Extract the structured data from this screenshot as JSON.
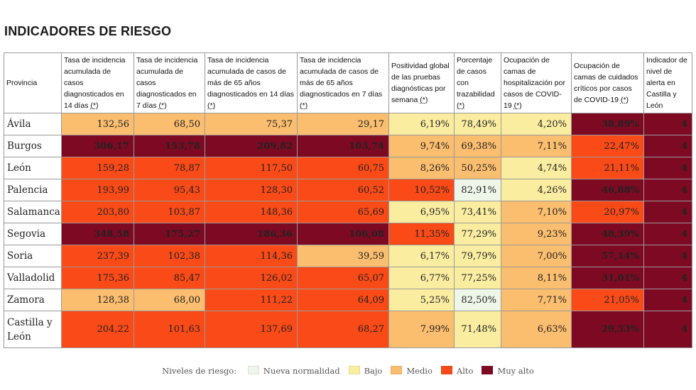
{
  "title": "INDICADORES DE RIESGO",
  "colors": {
    "nueva_normalidad": "#edf6e8",
    "bajo": "#fbeda0",
    "medio": "#fbbd6e",
    "alto": "#fa4a17",
    "muy_alto": "#7d0a22"
  },
  "columns": [
    {
      "label": "Provincia",
      "footnote": ""
    },
    {
      "label": "Tasa de incidencia acumulada de casos diagnosticados en 14 días",
      "footnote": "(*)"
    },
    {
      "label": "Tasa de incidencia acumulada de casos diagnosticados en 7 días",
      "footnote": "(*)"
    },
    {
      "label": "Tasa de incidencia acumulada de casos de más de 65 años diagnosticados en 14 días",
      "footnote": "(*)"
    },
    {
      "label": "Tasa de incidencia acumulada de casos de más de 65 años diagnosticados en 7 días",
      "footnote": "(*)"
    },
    {
      "label": "Positividad global de las pruebas diagnósticas por semana",
      "footnote": "(*)"
    },
    {
      "label": "Porcentaje de casos con trazabilidad",
      "footnote": "(*)"
    },
    {
      "label": "Ocupación de camas de hospitalización por casos de COVID-19",
      "footnote": "(*)"
    },
    {
      "label": "Ocupación de camas de cuidados críticos por casos de COVID-19",
      "footnote": "(*)"
    },
    {
      "label": "Indicador de nivel de alerta en Castilla y León",
      "footnote": ""
    }
  ],
  "rows": [
    {
      "province": "Ávila",
      "cells": [
        {
          "v": "132,56",
          "level": "medio"
        },
        {
          "v": "68,50",
          "level": "medio"
        },
        {
          "v": "75,37",
          "level": "medio"
        },
        {
          "v": "29,17",
          "level": "medio"
        },
        {
          "v": "6,19%",
          "level": "bajo"
        },
        {
          "v": "78,49%",
          "level": "bajo"
        },
        {
          "v": "4,20%",
          "level": "bajo"
        },
        {
          "v": "38,89%",
          "level": "muy_alto"
        },
        {
          "v": "4",
          "level": "muy_alto"
        }
      ]
    },
    {
      "province": "Burgos",
      "cells": [
        {
          "v": "306,17",
          "level": "muy_alto"
        },
        {
          "v": "153,78",
          "level": "muy_alto"
        },
        {
          "v": "209,82",
          "level": "muy_alto"
        },
        {
          "v": "103,74",
          "level": "muy_alto"
        },
        {
          "v": "9,74%",
          "level": "medio"
        },
        {
          "v": "69,38%",
          "level": "medio"
        },
        {
          "v": "7,11%",
          "level": "medio"
        },
        {
          "v": "22,47%",
          "level": "alto"
        },
        {
          "v": "4",
          "level": "muy_alto"
        }
      ]
    },
    {
      "province": "León",
      "cells": [
        {
          "v": "159,28",
          "level": "alto"
        },
        {
          "v": "78,87",
          "level": "alto"
        },
        {
          "v": "117,50",
          "level": "alto"
        },
        {
          "v": "60,75",
          "level": "alto"
        },
        {
          "v": "8,26%",
          "level": "medio"
        },
        {
          "v": "50,25%",
          "level": "medio"
        },
        {
          "v": "4,74%",
          "level": "bajo"
        },
        {
          "v": "21,11%",
          "level": "alto"
        },
        {
          "v": "4",
          "level": "muy_alto"
        }
      ]
    },
    {
      "province": "Palencia",
      "cells": [
        {
          "v": "193,99",
          "level": "alto"
        },
        {
          "v": "95,43",
          "level": "alto"
        },
        {
          "v": "128,30",
          "level": "alto"
        },
        {
          "v": "60,52",
          "level": "alto"
        },
        {
          "v": "10,52%",
          "level": "alto"
        },
        {
          "v": "82,91%",
          "level": "nueva_normalidad"
        },
        {
          "v": "4,26%",
          "level": "bajo"
        },
        {
          "v": "46,88%",
          "level": "muy_alto"
        },
        {
          "v": "4",
          "level": "muy_alto"
        }
      ]
    },
    {
      "province": "Salamanca",
      "cells": [
        {
          "v": "203,80",
          "level": "alto"
        },
        {
          "v": "103,87",
          "level": "alto"
        },
        {
          "v": "148,36",
          "level": "alto"
        },
        {
          "v": "65,69",
          "level": "alto"
        },
        {
          "v": "6,95%",
          "level": "bajo"
        },
        {
          "v": "73,41%",
          "level": "bajo"
        },
        {
          "v": "7,10%",
          "level": "medio"
        },
        {
          "v": "20,97%",
          "level": "alto"
        },
        {
          "v": "4",
          "level": "muy_alto"
        }
      ]
    },
    {
      "province": "Segovia",
      "cells": [
        {
          "v": "348,58",
          "level": "muy_alto"
        },
        {
          "v": "175,27",
          "level": "muy_alto"
        },
        {
          "v": "186,36",
          "level": "muy_alto"
        },
        {
          "v": "106,08",
          "level": "muy_alto"
        },
        {
          "v": "11,35%",
          "level": "alto"
        },
        {
          "v": "77,29%",
          "level": "bajo"
        },
        {
          "v": "9,23%",
          "level": "medio"
        },
        {
          "v": "48,39%",
          "level": "muy_alto"
        },
        {
          "v": "4",
          "level": "muy_alto"
        }
      ]
    },
    {
      "province": "Soria",
      "cells": [
        {
          "v": "237,39",
          "level": "alto"
        },
        {
          "v": "102,38",
          "level": "alto"
        },
        {
          "v": "114,36",
          "level": "alto"
        },
        {
          "v": "39,59",
          "level": "medio"
        },
        {
          "v": "6,17%",
          "level": "bajo"
        },
        {
          "v": "79,79%",
          "level": "bajo"
        },
        {
          "v": "7,00%",
          "level": "medio"
        },
        {
          "v": "57,14%",
          "level": "muy_alto"
        },
        {
          "v": "4",
          "level": "muy_alto"
        }
      ]
    },
    {
      "province": "Valladolid",
      "cells": [
        {
          "v": "175,36",
          "level": "alto"
        },
        {
          "v": "85,47",
          "level": "alto"
        },
        {
          "v": "126,02",
          "level": "alto"
        },
        {
          "v": "65,07",
          "level": "alto"
        },
        {
          "v": "6,77%",
          "level": "bajo"
        },
        {
          "v": "77,25%",
          "level": "bajo"
        },
        {
          "v": "8,11%",
          "level": "medio"
        },
        {
          "v": "31,01%",
          "level": "muy_alto"
        },
        {
          "v": "4",
          "level": "muy_alto"
        }
      ]
    },
    {
      "province": "Zamora",
      "cells": [
        {
          "v": "128,38",
          "level": "medio"
        },
        {
          "v": "68,00",
          "level": "medio"
        },
        {
          "v": "111,22",
          "level": "alto"
        },
        {
          "v": "64,09",
          "level": "alto"
        },
        {
          "v": "5,25%",
          "level": "bajo"
        },
        {
          "v": "82,50%",
          "level": "nueva_normalidad"
        },
        {
          "v": "7,71%",
          "level": "medio"
        },
        {
          "v": "21,05%",
          "level": "alto"
        },
        {
          "v": "4",
          "level": "muy_alto"
        }
      ]
    },
    {
      "province": "Castilla y León",
      "cells": [
        {
          "v": "204,22",
          "level": "alto"
        },
        {
          "v": "101,63",
          "level": "alto"
        },
        {
          "v": "137,69",
          "level": "alto"
        },
        {
          "v": "68,27",
          "level": "alto"
        },
        {
          "v": "7,99%",
          "level": "medio"
        },
        {
          "v": "71,48%",
          "level": "bajo"
        },
        {
          "v": "6,63%",
          "level": "medio"
        },
        {
          "v": "29,53%",
          "level": "muy_alto"
        },
        {
          "v": "4",
          "level": "muy_alto"
        }
      ]
    }
  ],
  "legend": {
    "label": "Niveles de riesgo:",
    "items": [
      {
        "label": "Nueva normalidad",
        "level": "nueva_normalidad"
      },
      {
        "label": "Bajo",
        "level": "bajo"
      },
      {
        "label": "Medio",
        "level": "medio"
      },
      {
        "label": "Alto",
        "level": "alto"
      },
      {
        "label": "Muy alto",
        "level": "muy_alto"
      }
    ]
  }
}
